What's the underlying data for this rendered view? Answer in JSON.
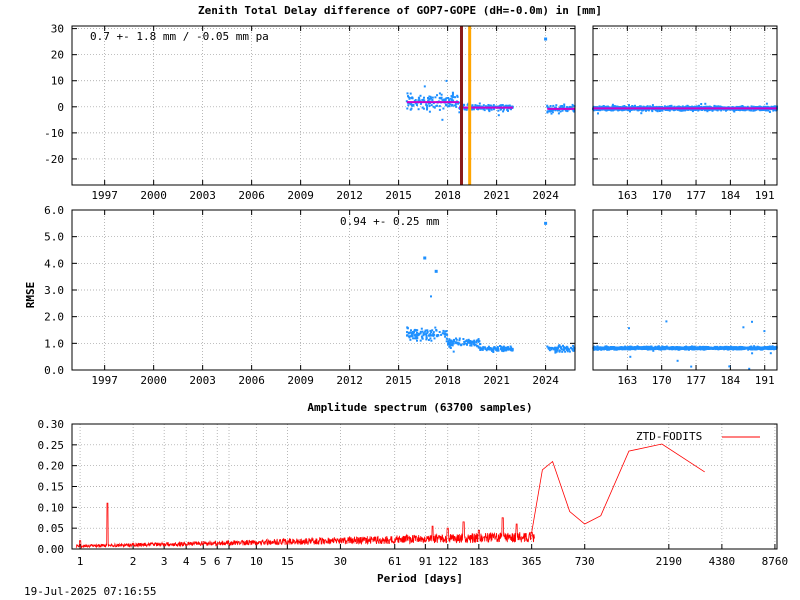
{
  "title": "Zenith Total Delay difference of GOP7-GOPE (dH=-0.0m) in [mm]",
  "timestamp": "19-Jul-2025 07:16:55",
  "colors": {
    "scatter": "#1e90ff",
    "mean": "#cc00cc",
    "event_dark": "#8b1a1a",
    "event_orange": "#ffa500",
    "spectrum": "#ff0000",
    "grid": "#9a9a9a"
  },
  "chart_data": [
    {
      "type": "scatter",
      "name": "ztd-difference-longterm",
      "annotation": "0.7 +-   1.8 mm / -0.05 mm pa",
      "xlabel": "",
      "ylabel": "",
      "xlim": [
        1995.0,
        2025.8
      ],
      "ylim": [
        -30,
        31
      ],
      "x_ticks": [
        1997,
        2000,
        2003,
        2006,
        2009,
        2012,
        2015,
        2018,
        2021,
        2024
      ],
      "y_ticks": [
        -20,
        -10,
        0,
        10,
        20,
        30
      ],
      "segments": [
        {
          "x": [
            2015.5,
            2018.7
          ],
          "center": 1.8,
          "spread": 3.2,
          "outlier": 9
        },
        {
          "x": [
            2018.7,
            2019.4
          ],
          "center": -0.2,
          "spread": 2.2,
          "outlier": 6
        },
        {
          "x": [
            2019.4,
            2022.0
          ],
          "center": -0.3,
          "spread": 1.4,
          "outlier": 4
        },
        {
          "x": [
            2024.1,
            2025.8
          ],
          "center": -0.8,
          "spread": 1.8,
          "outlier": 5
        }
      ],
      "mean_line": [
        {
          "x": [
            2015.5,
            2018.7
          ],
          "y": 1.8
        },
        {
          "x": [
            2018.7,
            2022.0
          ],
          "y": -0.3
        },
        {
          "x": [
            2024.1,
            2025.8
          ],
          "y": -0.8
        }
      ],
      "events": [
        {
          "x": 2018.85,
          "color": "event_dark"
        },
        {
          "x": 2019.35,
          "color": "event_orange"
        }
      ],
      "outliers": [
        {
          "x": 2024.0,
          "y": 26
        }
      ]
    },
    {
      "type": "scatter",
      "name": "ztd-difference-recent",
      "xlim": [
        156,
        193.5
      ],
      "ylim": [
        -30,
        31
      ],
      "x_ticks": [
        163,
        170,
        177,
        184,
        191
      ],
      "y_ticks": [
        -20,
        -10,
        0,
        10,
        20,
        30
      ],
      "segments": [
        {
          "x": [
            156,
            193.5
          ],
          "center": -0.6,
          "spread": 0.9,
          "outlier": 2
        }
      ],
      "mean_line": [
        {
          "x": [
            156,
            193.5
          ],
          "y": -0.6
        }
      ]
    },
    {
      "type": "scatter",
      "name": "rmse-longterm",
      "annotation": "0.94 +-  0.25 mm",
      "ylabel": "RMSE",
      "xlim": [
        1995.0,
        2025.8
      ],
      "ylim": [
        0,
        6
      ],
      "x_ticks": [
        1997,
        2000,
        2003,
        2006,
        2009,
        2012,
        2015,
        2018,
        2021,
        2024
      ],
      "y_ticks": [
        0.0,
        1.0,
        2.0,
        3.0,
        4.0,
        5.0,
        6.0
      ],
      "y_tick_labels": [
        "0.0",
        "1.0",
        "2.0",
        "3.0",
        "4.0",
        "5.0",
        "6.0"
      ],
      "segments": [
        {
          "x": [
            2015.5,
            2018.0
          ],
          "center": 1.35,
          "spread": 0.28,
          "outlier": 2.6
        },
        {
          "x": [
            2018.0,
            2020.0
          ],
          "center": 1.0,
          "spread": 0.2,
          "outlier": 1.6
        },
        {
          "x": [
            2020.0,
            2022.0
          ],
          "center": 0.8,
          "spread": 0.12,
          "outlier": 1.3
        },
        {
          "x": [
            2024.1,
            2025.8
          ],
          "center": 0.8,
          "spread": 0.15,
          "outlier": 2.0
        }
      ],
      "outliers": [
        {
          "x": 2016.6,
          "y": 4.2
        },
        {
          "x": 2017.3,
          "y": 3.7
        },
        {
          "x": 2024.0,
          "y": 5.5
        }
      ]
    },
    {
      "type": "scatter",
      "name": "rmse-recent",
      "xlim": [
        156,
        193.5
      ],
      "ylim": [
        0,
        6
      ],
      "x_ticks": [
        163,
        170,
        177,
        184,
        191
      ],
      "y_ticks": [
        0,
        1,
        2,
        3,
        4,
        5,
        6
      ],
      "segments": [
        {
          "x": [
            156,
            193.5
          ],
          "center": 0.82,
          "spread": 0.06,
          "outlier": 1.1
        }
      ]
    },
    {
      "type": "line",
      "name": "amplitude-spectrum",
      "title": "Amplitude spectrum (63700 samples)",
      "xlabel": "Period [days]",
      "legend": "ZTD-FODITS",
      "legend_position": "top-right",
      "x_log": true,
      "xlim": [
        0.9,
        9000
      ],
      "ylim": [
        0,
        0.3
      ],
      "y_ticks": [
        0.0,
        0.05,
        0.1,
        0.15,
        0.2,
        0.25,
        0.3
      ],
      "y_tick_labels": [
        "0.00",
        "0.05",
        "0.10",
        "0.15",
        "0.20",
        "0.25",
        "0.30"
      ],
      "x_ticks": [
        1,
        2,
        3,
        4,
        5,
        6,
        7,
        10,
        15,
        30,
        61,
        91,
        122,
        183,
        365,
        730,
        2190,
        4380,
        8760
      ],
      "x_tick_labels": [
        "1",
        "2",
        "3",
        "4",
        "5",
        "6",
        "7",
        "10",
        "15",
        "30",
        "61",
        "91",
        "122",
        "183",
        "365",
        "730",
        "2190",
        "4380",
        "8760"
      ],
      "peaks": [
        {
          "x": 1.0,
          "y": 0.02
        },
        {
          "x": 1.43,
          "y": 0.11
        },
        {
          "x": 100,
          "y": 0.055
        },
        {
          "x": 122,
          "y": 0.05
        },
        {
          "x": 150,
          "y": 0.065
        },
        {
          "x": 183,
          "y": 0.045
        },
        {
          "x": 250,
          "y": 0.075
        },
        {
          "x": 300,
          "y": 0.06
        },
        {
          "x": 365,
          "y": 0.04
        },
        {
          "x": 420,
          "y": 0.19
        },
        {
          "x": 480,
          "y": 0.21
        },
        {
          "x": 600,
          "y": 0.09
        },
        {
          "x": 730,
          "y": 0.06
        },
        {
          "x": 900,
          "y": 0.08
        },
        {
          "x": 1300,
          "y": 0.235
        },
        {
          "x": 2000,
          "y": 0.252
        },
        {
          "x": 3500,
          "y": 0.185
        }
      ]
    }
  ]
}
